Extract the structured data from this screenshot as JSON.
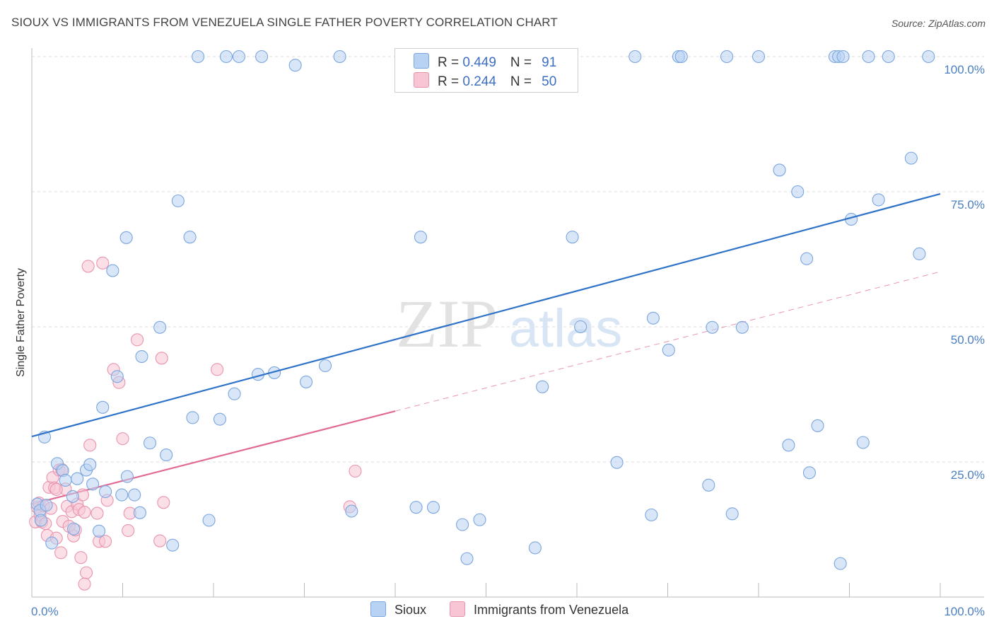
{
  "title": "SIOUX VS IMMIGRANTS FROM VENEZUELA SINGLE FATHER POVERTY CORRELATION CHART",
  "source": "Source: ZipAtlas.com",
  "watermark": {
    "zip": "ZIP",
    "atlas": "atlas"
  },
  "legend": {
    "sioux": {
      "r_label": "R = ",
      "r_value": "0.449",
      "n_label": "N = ",
      "n_value": "91"
    },
    "venezuela": {
      "r_label": "R = ",
      "r_value": "0.244",
      "n_label": "N = ",
      "n_value": "50"
    }
  },
  "colors": {
    "sioux_fill": "#b8d2f3",
    "sioux_stroke": "#7ba6de",
    "sioux_line": "#2f73c8",
    "ven_fill": "#f7c5d3",
    "ven_stroke": "#e994ad",
    "ven_line": "#e06b93",
    "grid": "#dddddd",
    "axis": "#bbbbbb",
    "tick_text": "#4a7fc1"
  },
  "chart_data": {
    "type": "scatter",
    "title": "SIOUX VS IMMIGRANTS FROM VENEZUELA SINGLE FATHER POVERTY CORRELATION CHART",
    "xlabel": "",
    "ylabel": "Single Father Poverty",
    "xlim": [
      0,
      100
    ],
    "ylim": [
      0,
      100
    ],
    "x_tick_labels": [
      "0.0%",
      "100.0%"
    ],
    "y_tick_labels": [
      "25.0%",
      "50.0%",
      "75.0%",
      "100.0%"
    ],
    "y_ticks": [
      25,
      50,
      75,
      100
    ],
    "legend_entries": [
      "Sioux",
      "Immigrants from Venezuela"
    ],
    "series": [
      {
        "name": "Sioux",
        "trend": {
          "x": [
            0,
            100
          ],
          "y": [
            29.7,
            74.6
          ],
          "style": "solid"
        },
        "points": [
          [
            0.6,
            17.2
          ],
          [
            0.9,
            16.0
          ],
          [
            1.0,
            14.2
          ],
          [
            1.4,
            29.6
          ],
          [
            1.6,
            17.0
          ],
          [
            2.2,
            10.0
          ],
          [
            2.8,
            24.7
          ],
          [
            3.4,
            23.4
          ],
          [
            3.7,
            21.6
          ],
          [
            4.5,
            18.6
          ],
          [
            4.6,
            12.6
          ],
          [
            5.0,
            21.9
          ],
          [
            6.0,
            23.5
          ],
          [
            6.4,
            24.5
          ],
          [
            6.7,
            20.9
          ],
          [
            7.4,
            12.2
          ],
          [
            7.8,
            35.1
          ],
          [
            8.1,
            19.5
          ],
          [
            8.9,
            60.4
          ],
          [
            9.4,
            40.8
          ],
          [
            9.9,
            18.9
          ],
          [
            10.4,
            66.5
          ],
          [
            10.5,
            22.3
          ],
          [
            11.3,
            18.9
          ],
          [
            11.9,
            15.6
          ],
          [
            12.1,
            44.5
          ],
          [
            13.0,
            28.5
          ],
          [
            14.1,
            49.9
          ],
          [
            14.8,
            26.3
          ],
          [
            15.5,
            9.6
          ],
          [
            16.1,
            73.3
          ],
          [
            17.4,
            66.6
          ],
          [
            17.7,
            33.2
          ],
          [
            18.3,
            100
          ],
          [
            19.5,
            14.2
          ],
          [
            20.7,
            32.9
          ],
          [
            21.4,
            100
          ],
          [
            22.3,
            37.6
          ],
          [
            22.8,
            100
          ],
          [
            24.9,
            41.2
          ],
          [
            25.3,
            100
          ],
          [
            26.7,
            41.5
          ],
          [
            29.0,
            98.4
          ],
          [
            30.2,
            39.8
          ],
          [
            32.3,
            42.8
          ],
          [
            33.9,
            100
          ],
          [
            35.2,
            15.9
          ],
          [
            42.3,
            16.6
          ],
          [
            42.8,
            66.6
          ],
          [
            44.2,
            16.6
          ],
          [
            47.4,
            13.4
          ],
          [
            47.9,
            7.1
          ],
          [
            49.3,
            14.3
          ],
          [
            49.5,
            100
          ],
          [
            51.7,
            100
          ],
          [
            55.4,
            9.1
          ],
          [
            56.2,
            38.9
          ],
          [
            59.0,
            100
          ],
          [
            59.5,
            66.6
          ],
          [
            60.4,
            50.0
          ],
          [
            64.4,
            24.9
          ],
          [
            66.4,
            100
          ],
          [
            68.2,
            15.2
          ],
          [
            68.4,
            51.6
          ],
          [
            70.1,
            45.7
          ],
          [
            71.2,
            100
          ],
          [
            71.5,
            100
          ],
          [
            74.5,
            20.7
          ],
          [
            74.9,
            49.9
          ],
          [
            76.5,
            100
          ],
          [
            77.1,
            15.4
          ],
          [
            78.2,
            49.9
          ],
          [
            80.0,
            100
          ],
          [
            82.3,
            79.0
          ],
          [
            83.3,
            28.1
          ],
          [
            84.3,
            75.0
          ],
          [
            85.3,
            62.6
          ],
          [
            85.6,
            23.0
          ],
          [
            86.5,
            31.7
          ],
          [
            88.4,
            100
          ],
          [
            88.8,
            100
          ],
          [
            89.3,
            100
          ],
          [
            89.0,
            6.2
          ],
          [
            90.2,
            69.9
          ],
          [
            91.5,
            28.6
          ],
          [
            92.1,
            100
          ],
          [
            93.2,
            73.5
          ],
          [
            94.3,
            100
          ],
          [
            96.8,
            81.2
          ],
          [
            97.7,
            63.5
          ],
          [
            98.7,
            100
          ]
        ]
      },
      {
        "name": "Immigrants from Venezuela",
        "trend": {
          "x": [
            0,
            40
          ],
          "y": [
            17.2,
            34.4
          ],
          "style": "solid",
          "dashed_extension": {
            "x": [
              40,
              100
            ],
            "y": [
              34.4,
              60.2
            ]
          }
        },
        "points": [
          [
            0.4,
            13.9
          ],
          [
            0.6,
            16.6
          ],
          [
            0.8,
            17.4
          ],
          [
            0.9,
            15.2
          ],
          [
            1.1,
            13.9
          ],
          [
            1.3,
            16.9
          ],
          [
            1.5,
            13.6
          ],
          [
            1.7,
            11.4
          ],
          [
            1.9,
            20.3
          ],
          [
            2.1,
            16.4
          ],
          [
            2.3,
            22.1
          ],
          [
            2.5,
            20.2
          ],
          [
            2.7,
            10.9
          ],
          [
            3.0,
            23.5
          ],
          [
            3.2,
            8.2
          ],
          [
            3.4,
            14.0
          ],
          [
            3.7,
            20.0
          ],
          [
            3.9,
            16.8
          ],
          [
            4.1,
            13.1
          ],
          [
            4.4,
            15.8
          ],
          [
            4.6,
            11.3
          ],
          [
            5.0,
            17.2
          ],
          [
            5.2,
            16.2
          ],
          [
            5.4,
            7.3
          ],
          [
            5.6,
            18.9
          ],
          [
            5.8,
            15.7
          ],
          [
            6.0,
            4.5
          ],
          [
            6.2,
            61.2
          ],
          [
            6.4,
            28.1
          ],
          [
            7.2,
            15.5
          ],
          [
            7.4,
            10.3
          ],
          [
            7.8,
            61.8
          ],
          [
            8.1,
            10.3
          ],
          [
            8.3,
            17.9
          ],
          [
            9.0,
            42.1
          ],
          [
            9.6,
            39.7
          ],
          [
            10.0,
            29.3
          ],
          [
            10.6,
            12.3
          ],
          [
            10.8,
            15.5
          ],
          [
            11.6,
            47.6
          ],
          [
            14.1,
            10.4
          ],
          [
            14.3,
            44.2
          ],
          [
            14.5,
            17.5
          ],
          [
            20.4,
            42.1
          ],
          [
            35.0,
            16.7
          ],
          [
            35.6,
            23.3
          ],
          [
            3.3,
            23.6
          ],
          [
            4.8,
            12.4
          ],
          [
            2.7,
            19.9
          ],
          [
            5.8,
            2.4
          ]
        ]
      }
    ]
  },
  "bottom_legend": {
    "sioux": "Sioux",
    "venezuela": "Immigrants from Venezuela"
  }
}
